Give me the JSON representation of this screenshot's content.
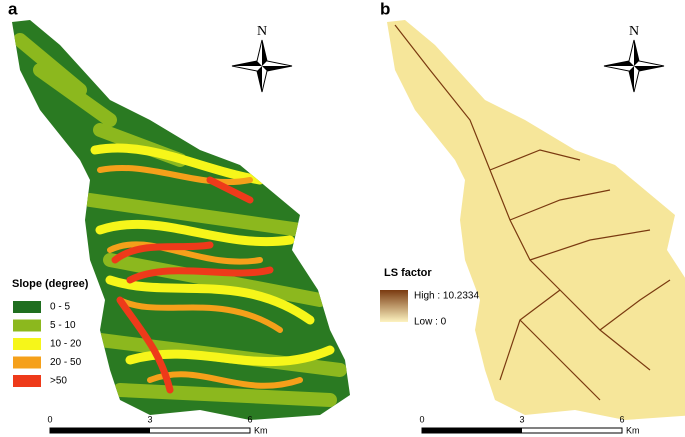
{
  "panels": [
    {
      "label": "a",
      "north": "N",
      "legend": {
        "title": "Slope (degree)",
        "items": [
          {
            "label": "0 - 5",
            "color": "#1f6e1f"
          },
          {
            "label": "5 - 10",
            "color": "#8cb81e"
          },
          {
            "label": "10 - 20",
            "color": "#f6f61a"
          },
          {
            "label": "20 - 50",
            "color": "#f5a01a"
          },
          {
            "label": ">50",
            "color": "#ee3a1a"
          }
        ]
      },
      "scale": {
        "ticks": [
          0,
          3,
          6
        ],
        "unit": "Km"
      }
    },
    {
      "label": "b",
      "north": "N",
      "legend": {
        "title": "LS factor",
        "high": "High : 10.2334",
        "low": "Low : 0",
        "colors": [
          "#7a3a10",
          "#fdf3c0"
        ]
      },
      "scale": {
        "ticks": [
          0,
          3,
          6
        ],
        "unit": "Km"
      }
    }
  ]
}
